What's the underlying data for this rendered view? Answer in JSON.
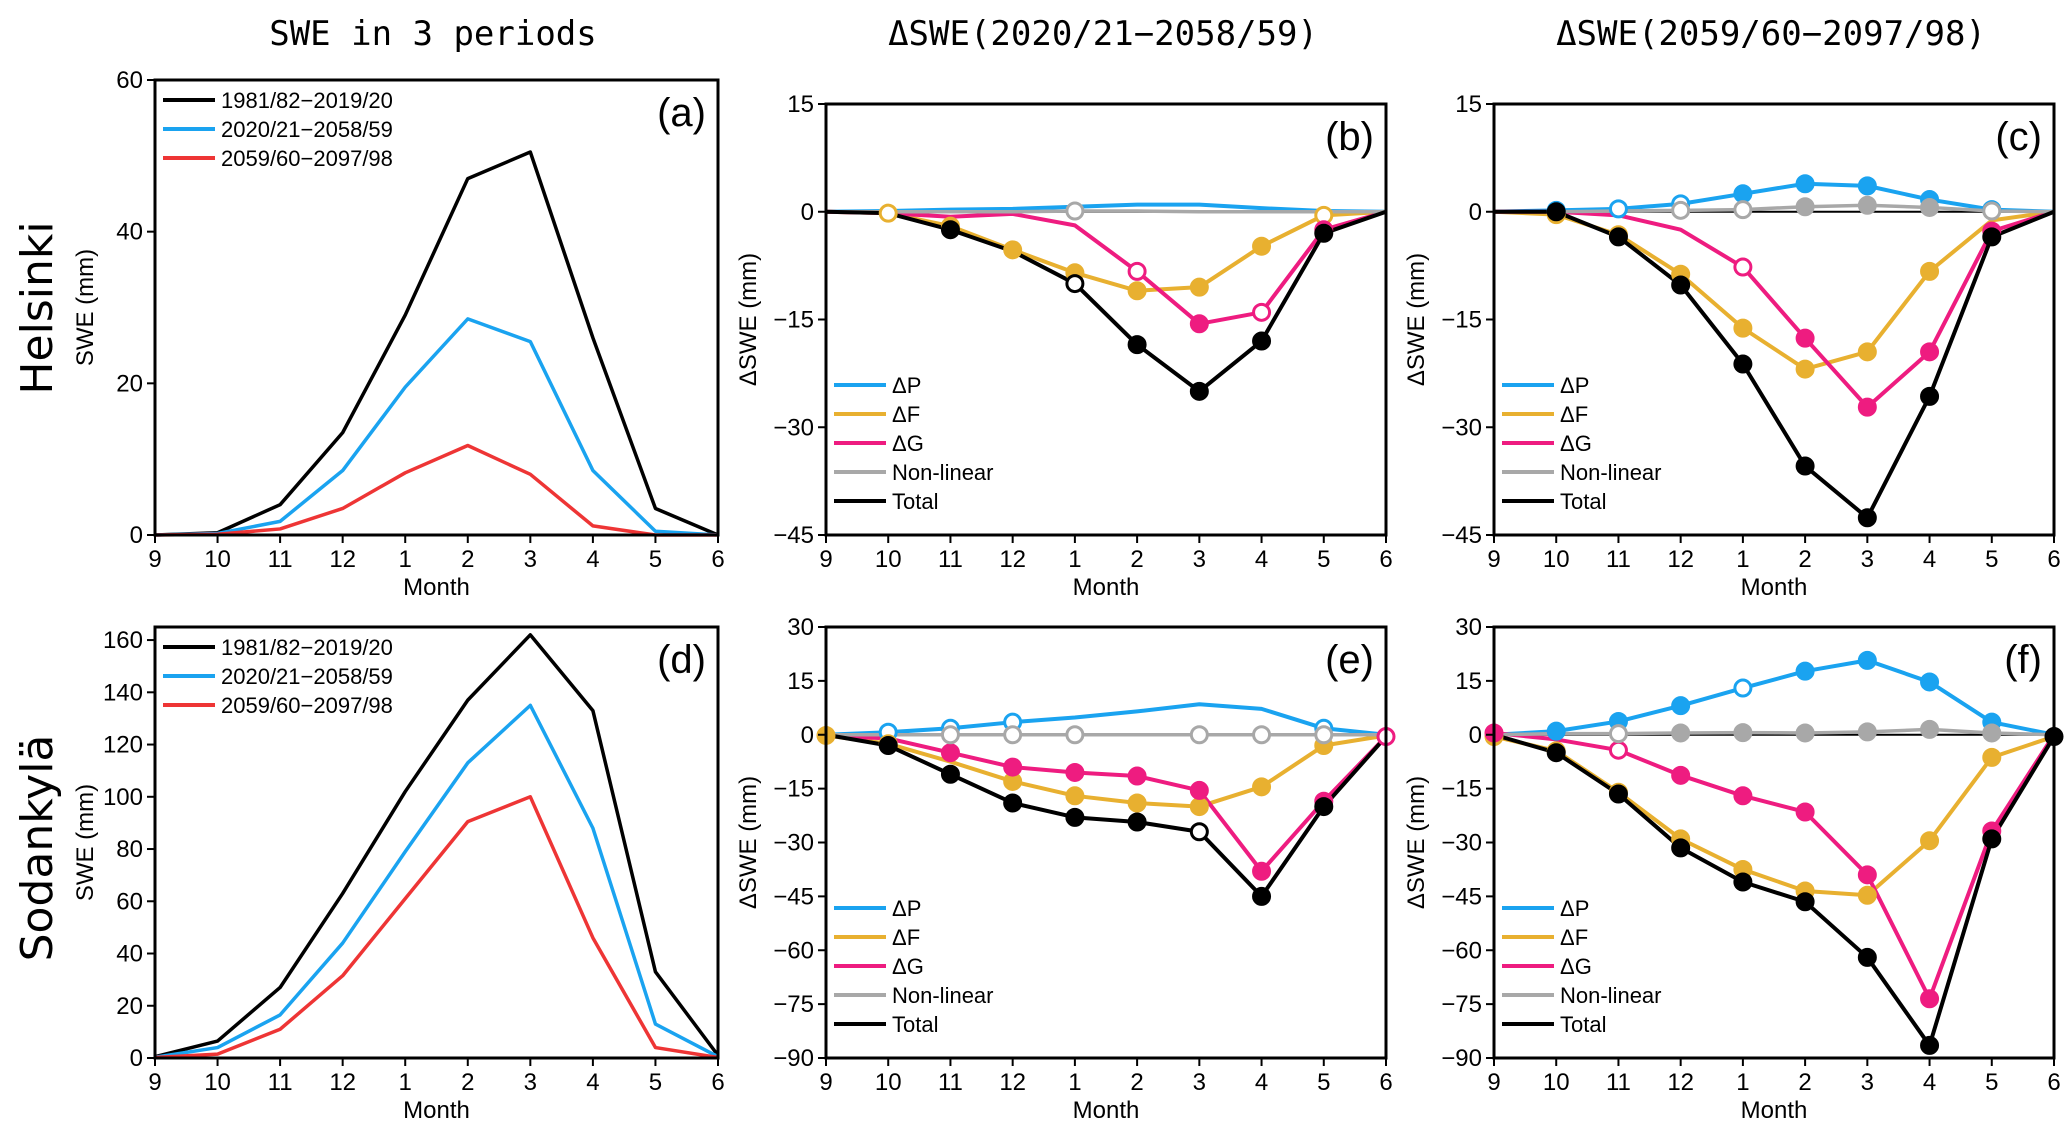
{
  "figure": {
    "column_titles": [
      "SWE in 3 periods",
      "ΔSWE(2020/21−2058/59)",
      "ΔSWE(2059/60−2097/98)"
    ],
    "row_titles": [
      "Helsinki",
      "Sodankylä"
    ]
  },
  "colors": {
    "period1": "#000000",
    "period2": "#1aa3f0",
    "period3": "#ee3535",
    "dP": "#1aa3f0",
    "dF": "#e8b030",
    "dG": "#ee1c80",
    "nonlinear": "#a8a8a8",
    "total": "#000000"
  },
  "chart_data": [
    {
      "id": "a",
      "panel_label": "(a)",
      "type": "line",
      "title": "",
      "xlabel": "Month",
      "ylabel": "SWE (mm)",
      "x": [
        "9",
        "10",
        "11",
        "12",
        "1",
        "2",
        "3",
        "4",
        "5",
        "6"
      ],
      "ylim": [
        0,
        60
      ],
      "yticks": [
        0,
        20,
        40,
        60
      ],
      "legend": "top-left",
      "series": [
        {
          "name": "1981/82−2019/20",
          "color_key": "period1",
          "values": [
            0,
            0.3,
            4,
            13.5,
            29,
            47,
            50.5,
            26,
            3.5,
            0
          ]
        },
        {
          "name": "2020/21−2058/59",
          "color_key": "period2",
          "values": [
            0,
            0.2,
            1.8,
            8.5,
            19.5,
            28.5,
            25.5,
            8.5,
            0.5,
            0
          ]
        },
        {
          "name": "2059/60−2097/98",
          "color_key": "period3",
          "values": [
            0,
            0.1,
            0.8,
            3.5,
            8.2,
            11.8,
            8,
            1.2,
            0,
            0
          ]
        }
      ]
    },
    {
      "id": "b",
      "panel_label": "(b)",
      "type": "line",
      "xlabel": "Month",
      "ylabel": "ΔSWE (mm)",
      "x": [
        "9",
        "10",
        "11",
        "12",
        "1",
        "2",
        "3",
        "4",
        "5",
        "6"
      ],
      "ylim": [
        -45,
        15
      ],
      "yticks": [
        -45,
        -30,
        -15,
        0,
        15
      ],
      "legend": "bottom-left",
      "markers": "filled = significant, hollow = not significant, none = no marker",
      "series": [
        {
          "name": "ΔP",
          "color_key": "dP",
          "values": [
            0,
            0.1,
            0.3,
            0.4,
            0.7,
            1,
            1,
            0.5,
            0.1,
            0
          ],
          "markers": [
            "",
            "",
            "",
            "",
            "",
            "",
            "",
            "",
            "",
            ""
          ]
        },
        {
          "name": "ΔF",
          "color_key": "dF",
          "values": [
            0,
            -0.2,
            -2,
            -5.3,
            -8.5,
            -11,
            -10.5,
            -4.8,
            -0.5,
            0
          ],
          "markers": [
            "",
            "o",
            "f",
            "f",
            "f",
            "f",
            "f",
            "f",
            "o",
            ""
          ]
        },
        {
          "name": "ΔG",
          "color_key": "dG",
          "values": [
            0,
            -0.2,
            -0.7,
            -0.3,
            -1.9,
            -8.3,
            -15.6,
            -14,
            -2.5,
            0
          ],
          "markers": [
            "",
            "",
            "",
            "",
            "",
            "o",
            "f",
            "o",
            "f",
            ""
          ]
        },
        {
          "name": "Non-linear",
          "color_key": "nonlinear",
          "values": [
            0,
            0,
            0,
            0,
            0.1,
            0.1,
            0,
            0,
            0,
            0
          ],
          "markers": [
            "",
            "",
            "",
            "",
            "o",
            "",
            "",
            "",
            "",
            ""
          ]
        },
        {
          "name": "Total",
          "color_key": "total",
          "values": [
            0,
            -0.2,
            -2.5,
            -5.5,
            -10,
            -18.5,
            -25,
            -18,
            -3,
            0
          ],
          "markers": [
            "",
            "",
            "f",
            "",
            "o",
            "f",
            "f",
            "f",
            "f",
            ""
          ]
        }
      ]
    },
    {
      "id": "c",
      "panel_label": "(c)",
      "type": "line",
      "xlabel": "Month",
      "ylabel": "ΔSWE (mm)",
      "x": [
        "9",
        "10",
        "11",
        "12",
        "1",
        "2",
        "3",
        "4",
        "5",
        "6"
      ],
      "ylim": [
        -45,
        15
      ],
      "yticks": [
        -45,
        -30,
        -15,
        0,
        15
      ],
      "legend": "bottom-left",
      "series": [
        {
          "name": "ΔP",
          "color_key": "dP",
          "values": [
            0,
            0.2,
            0.4,
            1.1,
            2.5,
            3.9,
            3.6,
            1.7,
            0.3,
            0
          ],
          "markers": [
            "",
            "f",
            "o",
            "o",
            "f",
            "f",
            "f",
            "f",
            "f",
            ""
          ]
        },
        {
          "name": "ΔF",
          "color_key": "dF",
          "values": [
            0,
            -0.4,
            -3.2,
            -8.7,
            -16.2,
            -21.9,
            -19.5,
            -8.3,
            -1.2,
            0
          ],
          "markers": [
            "",
            "f",
            "f",
            "f",
            "f",
            "f",
            "f",
            "f",
            "",
            ""
          ]
        },
        {
          "name": "ΔG",
          "color_key": "dG",
          "values": [
            0,
            0,
            -0.5,
            -2.5,
            -7.7,
            -17.6,
            -27.2,
            -19.5,
            -2.7,
            0
          ],
          "markers": [
            "",
            "",
            "",
            "",
            "o",
            "f",
            "f",
            "f",
            "f",
            ""
          ]
        },
        {
          "name": "Non-linear",
          "color_key": "nonlinear",
          "values": [
            0,
            0,
            0.1,
            0.2,
            0.3,
            0.7,
            0.9,
            0.6,
            0.1,
            0
          ],
          "markers": [
            "",
            "",
            "",
            "o",
            "o",
            "f",
            "f",
            "f",
            "o",
            ""
          ]
        },
        {
          "name": "Total",
          "color_key": "total",
          "values": [
            0,
            0,
            -3.5,
            -10.2,
            -21.2,
            -35.4,
            -42.6,
            -25.7,
            -3.5,
            0
          ],
          "markers": [
            "",
            "f",
            "f",
            "f",
            "f",
            "f",
            "f",
            "f",
            "f",
            ""
          ]
        }
      ]
    },
    {
      "id": "d",
      "panel_label": "(d)",
      "type": "line",
      "xlabel": "Month",
      "ylabel": "SWE (mm)",
      "x": [
        "9",
        "10",
        "11",
        "12",
        "1",
        "2",
        "3",
        "4",
        "5",
        "6"
      ],
      "ylim": [
        0,
        165
      ],
      "yticks": [
        0,
        20,
        40,
        60,
        80,
        100,
        120,
        140,
        160
      ],
      "legend": "top-left",
      "series": [
        {
          "name": "1981/82−2019/20",
          "color_key": "period1",
          "values": [
            0.5,
            6.5,
            27,
            63,
            102,
            137,
            162,
            133,
            33,
            1
          ]
        },
        {
          "name": "2020/21−2058/59",
          "color_key": "period2",
          "values": [
            0.3,
            4,
            16.5,
            44,
            79,
            113,
            135,
            88,
            13,
            0.5
          ]
        },
        {
          "name": "2059/60−2097/98",
          "color_key": "period3",
          "values": [
            0.2,
            1.5,
            11,
            31.5,
            61,
            90.5,
            100,
            46,
            4,
            0.2
          ]
        }
      ]
    },
    {
      "id": "e",
      "panel_label": "(e)",
      "type": "line",
      "xlabel": "Month",
      "ylabel": "ΔSWE (mm)",
      "x": [
        "9",
        "10",
        "11",
        "12",
        "1",
        "2",
        "3",
        "4",
        "5",
        "6"
      ],
      "ylim": [
        -90,
        30
      ],
      "yticks": [
        -90,
        -75,
        -60,
        -45,
        -30,
        -15,
        0,
        15,
        30
      ],
      "legend": "bottom-left",
      "series": [
        {
          "name": "ΔP",
          "color_key": "dP",
          "values": [
            0,
            0.7,
            1.8,
            3.5,
            4.8,
            6.5,
            8.5,
            7.2,
            1.8,
            0
          ],
          "markers": [
            "",
            "o",
            "o",
            "o",
            "",
            "",
            "",
            "",
            "o",
            ""
          ]
        },
        {
          "name": "ΔF",
          "color_key": "dF",
          "values": [
            -0.2,
            -2.5,
            -7.5,
            -13,
            -17,
            -19,
            -20,
            -14.5,
            -3,
            -0.2
          ],
          "markers": [
            "f",
            "f",
            "",
            "f",
            "f",
            "f",
            "f",
            "f",
            "f",
            ""
          ]
        },
        {
          "name": "ΔG",
          "color_key": "dG",
          "values": [
            -0.3,
            -1,
            -5,
            -9,
            -10.5,
            -11.5,
            -15.5,
            -38,
            -18.5,
            -0.5
          ],
          "markers": [
            "",
            "",
            "f",
            "f",
            "f",
            "f",
            "f",
            "f",
            "f",
            "o"
          ]
        },
        {
          "name": "Non-linear",
          "color_key": "nonlinear",
          "values": [
            0,
            0,
            0,
            0,
            0,
            0,
            0,
            0,
            0,
            0
          ],
          "markers": [
            "",
            "",
            "o",
            "o",
            "o",
            "",
            "o",
            "o",
            "o",
            ""
          ]
        },
        {
          "name": "Total",
          "color_key": "total",
          "values": [
            0,
            -3,
            -11,
            -19,
            -23,
            -24.3,
            -27,
            -45,
            -20,
            -0.5
          ],
          "markers": [
            "",
            "f",
            "f",
            "f",
            "f",
            "f",
            "o",
            "f",
            "f",
            ""
          ]
        }
      ]
    },
    {
      "id": "f",
      "panel_label": "(f)",
      "type": "line",
      "xlabel": "Month",
      "ylabel": "ΔSWE (mm)",
      "x": [
        "9",
        "10",
        "11",
        "12",
        "1",
        "2",
        "3",
        "4",
        "5",
        "6"
      ],
      "ylim": [
        -90,
        30
      ],
      "yticks": [
        -90,
        -75,
        -60,
        -45,
        -30,
        -15,
        0,
        15,
        30
      ],
      "legend": "bottom-left",
      "series": [
        {
          "name": "ΔP",
          "color_key": "dP",
          "values": [
            0,
            1,
            3.7,
            8.1,
            13,
            17.7,
            20.7,
            14.7,
            3.5,
            0
          ],
          "markers": [
            "",
            "f",
            "f",
            "f",
            "o",
            "f",
            "f",
            "f",
            "f",
            ""
          ]
        },
        {
          "name": "ΔF",
          "color_key": "dF",
          "values": [
            -0.5,
            -4.5,
            -16,
            -29,
            -37.5,
            -43.5,
            -44.7,
            -29.5,
            -6.3,
            -0.5
          ],
          "markers": [
            "f",
            "f",
            "f",
            "f",
            "f",
            "f",
            "f",
            "f",
            "f",
            ""
          ]
        },
        {
          "name": "ΔG",
          "color_key": "dG",
          "values": [
            0.5,
            -1.3,
            -4.3,
            -11.3,
            -17,
            -21.5,
            -39,
            -73.5,
            -26.8,
            0
          ],
          "markers": [
            "f",
            "",
            "o",
            "f",
            "f",
            "f",
            "f",
            "f",
            "f",
            ""
          ]
        },
        {
          "name": "Non-linear",
          "color_key": "nonlinear",
          "values": [
            0,
            0.3,
            0.3,
            0.5,
            0.6,
            0.5,
            0.8,
            1.5,
            0.5,
            0
          ],
          "markers": [
            "",
            "",
            "o",
            "f",
            "f",
            "f",
            "f",
            "f",
            "f",
            ""
          ]
        },
        {
          "name": "Total",
          "color_key": "total",
          "values": [
            0,
            -5,
            -16.5,
            -31.5,
            -41,
            -46.5,
            -62,
            -86.5,
            -29,
            -0.5
          ],
          "markers": [
            "",
            "f",
            "f",
            "f",
            "f",
            "f",
            "f",
            "f",
            "f",
            "f"
          ]
        }
      ]
    }
  ]
}
